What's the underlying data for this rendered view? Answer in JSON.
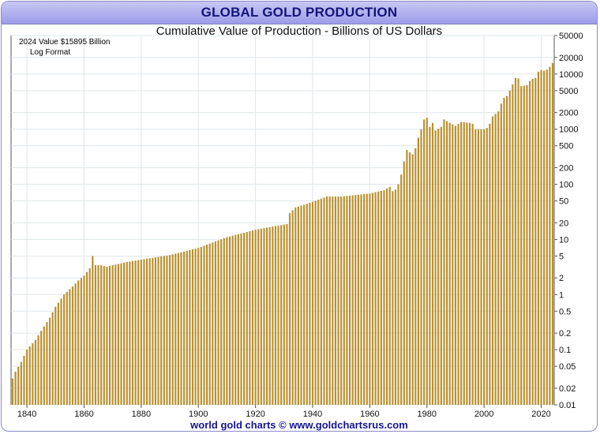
{
  "title": "GLOBAL GOLD PRODUCTION",
  "footer": "world gold charts © www.goldchartsrus.com",
  "chart_data": {
    "type": "bar",
    "title": "Cumulative Value of Production - Billions of US Dollars",
    "xlabel": "",
    "ylabel": "",
    "annotations": [
      "2024  Value  $15895 Billion",
      "Log Format"
    ],
    "y_scale": "log",
    "ylim": [
      0.01,
      50000
    ],
    "xlim": [
      1835,
      2024
    ],
    "y_ticks": [
      50000,
      20000,
      10000,
      5000,
      2000,
      1000,
      500,
      200,
      100,
      50,
      20,
      10,
      5,
      2,
      1,
      0.5,
      0.2,
      0.1,
      0.05,
      0.02,
      0.01
    ],
    "y_tick_labels": [
      "50000",
      "20000",
      "10000",
      "5000",
      "2000",
      "1000",
      "500",
      "200",
      "100",
      "50",
      "20",
      "10",
      "5",
      "2",
      "1",
      "0.5",
      "0.2",
      "0.1",
      "0.05",
      "0.02",
      "0.01"
    ],
    "x_ticks": [
      1840,
      1860,
      1880,
      1900,
      1920,
      1940,
      1960,
      1980,
      2000,
      2020
    ],
    "x_tick_labels": [
      "1840",
      "1860",
      "1880",
      "1900",
      "1920",
      "1940",
      "1960",
      "1980",
      "2000",
      "2020"
    ],
    "grid": true,
    "bar_color": "#b8902e",
    "series_points": [
      [
        1835,
        0.03
      ],
      [
        1836,
        0.04
      ],
      [
        1838,
        0.06
      ],
      [
        1840,
        0.1
      ],
      [
        1843,
        0.15
      ],
      [
        1845,
        0.22
      ],
      [
        1848,
        0.38
      ],
      [
        1850,
        0.6
      ],
      [
        1853,
        1.0
      ],
      [
        1856,
        1.4
      ],
      [
        1858,
        1.8
      ],
      [
        1860,
        2.2
      ],
      [
        1862,
        3.0
      ],
      [
        1863,
        5.0
      ],
      [
        1864,
        3.4
      ],
      [
        1866,
        3.4
      ],
      [
        1868,
        3.2
      ],
      [
        1870,
        3.4
      ],
      [
        1875,
        3.9
      ],
      [
        1880,
        4.3
      ],
      [
        1890,
        5.2
      ],
      [
        1900,
        7.0
      ],
      [
        1910,
        11
      ],
      [
        1920,
        15
      ],
      [
        1931,
        19
      ],
      [
        1932,
        30
      ],
      [
        1934,
        38
      ],
      [
        1940,
        48
      ],
      [
        1945,
        60
      ],
      [
        1950,
        60
      ],
      [
        1960,
        68
      ],
      [
        1965,
        78
      ],
      [
        1967,
        90
      ],
      [
        1968,
        75
      ],
      [
        1969,
        80
      ],
      [
        1970,
        100
      ],
      [
        1971,
        150
      ],
      [
        1972,
        260
      ],
      [
        1973,
        420
      ],
      [
        1974,
        380
      ],
      [
        1975,
        350
      ],
      [
        1976,
        450
      ],
      [
        1977,
        700
      ],
      [
        1978,
        1000
      ],
      [
        1979,
        1500
      ],
      [
        1980,
        1600
      ],
      [
        1981,
        1100
      ],
      [
        1982,
        1300
      ],
      [
        1983,
        950
      ],
      [
        1985,
        1100
      ],
      [
        1986,
        1500
      ],
      [
        1988,
        1300
      ],
      [
        1990,
        1150
      ],
      [
        1992,
        1350
      ],
      [
        1995,
        1300
      ],
      [
        1996,
        1250
      ],
      [
        1997,
        1000
      ],
      [
        2000,
        1000
      ],
      [
        2001,
        1050
      ],
      [
        2002,
        1250
      ],
      [
        2003,
        1700
      ],
      [
        2005,
        2100
      ],
      [
        2006,
        2900
      ],
      [
        2007,
        3700
      ],
      [
        2008,
        4000
      ],
      [
        2009,
        5000
      ],
      [
        2010,
        6500
      ],
      [
        2011,
        8500
      ],
      [
        2012,
        8300
      ],
      [
        2013,
        6000
      ],
      [
        2015,
        6300
      ],
      [
        2016,
        7500
      ],
      [
        2017,
        8200
      ],
      [
        2018,
        8500
      ],
      [
        2019,
        11000
      ],
      [
        2020,
        11800
      ],
      [
        2021,
        11500
      ],
      [
        2022,
        12000
      ],
      [
        2023,
        13500
      ],
      [
        2024,
        15895
      ]
    ]
  }
}
